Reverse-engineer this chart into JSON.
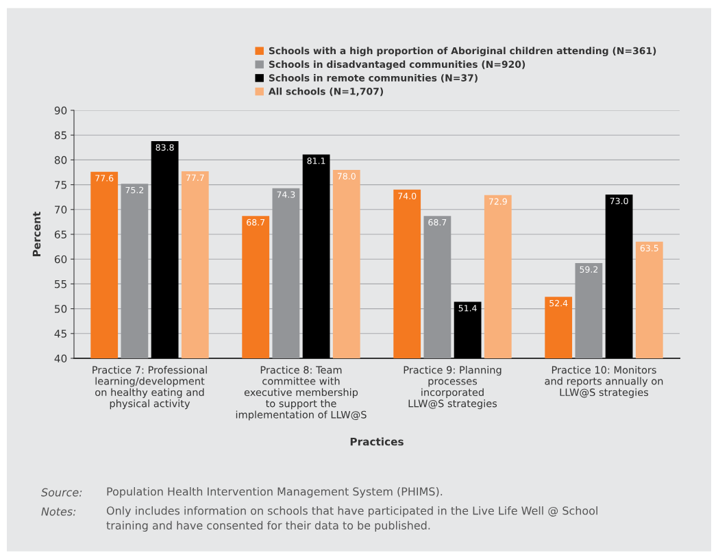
{
  "chart_data": {
    "type": "bar",
    "xlabel": "Practices",
    "ylabel": "Percent",
    "categories": [
      "Practice 7: Professional\nlearning/development\non healthy eating and\nphysical activity",
      "Practice 8: Team\ncommittee with\nexecutive membership\nto support the\nimplementation of LLW@S",
      "Practice 9: Planning\nprocesses\nincorporated\nLLW@S strategies",
      "Practice 10: Monitors\nand reports annually on\nLLW@S strategies"
    ],
    "series": [
      {
        "name": "Schools with a high proportion of Aboriginal children attending (N=361)",
        "color": "#f47920",
        "values": [
          77.6,
          68.7,
          74.0,
          52.4
        ],
        "value_labels": [
          "77.6",
          "68.7",
          "74.0",
          "52.4"
        ]
      },
      {
        "name": "Schools in disadvantaged communities (N=920)",
        "color": "#939598",
        "values": [
          75.2,
          74.3,
          68.7,
          59.2
        ],
        "value_labels": [
          "75.2",
          "74.3",
          "68.7",
          "59.2"
        ]
      },
      {
        "name": "Schools in remote communities (N=37)",
        "color": "#000000",
        "values": [
          83.8,
          81.1,
          51.4,
          73.0
        ],
        "value_labels": [
          "83.8",
          "81.1",
          "51.4",
          "73.0"
        ]
      },
      {
        "name": "All schools (N=1,707)",
        "color": "#f9b07a",
        "values": [
          77.7,
          78.0,
          72.9,
          63.5
        ],
        "value_labels": [
          "77.7",
          "78.0",
          "72.9",
          "63.5"
        ]
      }
    ],
    "ylim": [
      40,
      90
    ],
    "yticks": [
      40,
      45,
      50,
      55,
      60,
      65,
      70,
      75,
      80,
      85,
      90
    ],
    "grid": "y",
    "legend": "top",
    "annotations": [
      "Source:\tPopulation Health Intervention Management System (PHIMS).",
      "Notes:\tOnly includes information on schools that have participated in the Live Life Well @ School\ntraining and have consented for their data to be published."
    ]
  }
}
